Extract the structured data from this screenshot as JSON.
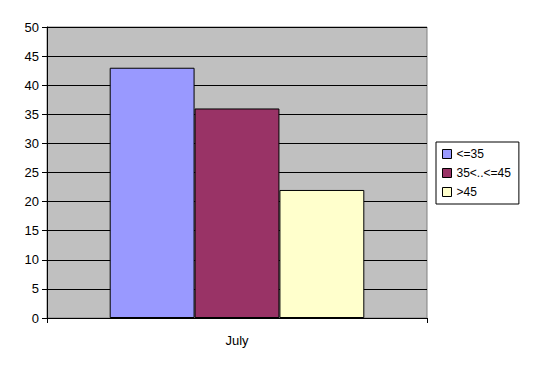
{
  "chart_data": {
    "type": "bar",
    "categories": [
      "July"
    ],
    "series": [
      {
        "name": "<=35",
        "color": "#9999ff",
        "values": [
          43
        ]
      },
      {
        "name": "35<..<=45",
        "color": "#993366",
        "values": [
          36
        ]
      },
      {
        "name": ">45",
        "color": "#ffffcc",
        "values": [
          22
        ]
      }
    ],
    "ylim": [
      0,
      50
    ],
    "yticks": [
      0,
      5,
      10,
      15,
      20,
      25,
      30,
      35,
      40,
      45,
      50
    ],
    "grid": true,
    "legend": "right"
  }
}
